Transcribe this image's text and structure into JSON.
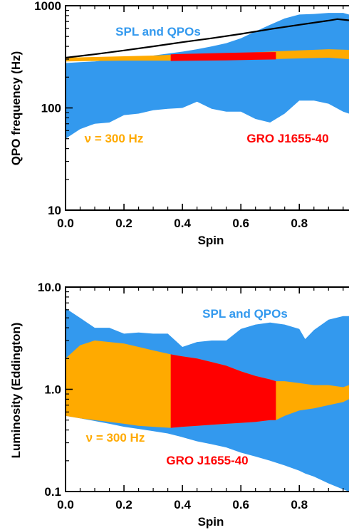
{
  "chart_data": [
    {
      "type": "area",
      "xlabel": "Spin",
      "ylabel": "QPO frequency (Hz)",
      "xlim": [
        0.0,
        0.97
      ],
      "ylim": [
        10,
        1000
      ],
      "yscale": "log",
      "x_ticks": [
        "0.0",
        "0.2",
        "0.4",
        "0.6",
        "0.8"
      ],
      "y_ticks": [
        "10",
        "100",
        "1000"
      ],
      "annotations": {
        "spl_label": "SPL and QPOs",
        "nu_label": "ν = 300 Hz",
        "source_label": "GRO J1655-40"
      },
      "colors": {
        "spl": "#3399ee",
        "nu": "#ffaa00",
        "source": "#ff0000",
        "line": "#000000"
      },
      "series": [
        {
          "name": "SPL and QPOs",
          "x": [
            0.0,
            0.05,
            0.1,
            0.15,
            0.2,
            0.25,
            0.3,
            0.35,
            0.4,
            0.45,
            0.5,
            0.55,
            0.6,
            0.65,
            0.7,
            0.75,
            0.8,
            0.85,
            0.9,
            0.95,
            0.97
          ],
          "upper": [
            275,
            280,
            285,
            295,
            305,
            315,
            325,
            340,
            355,
            375,
            400,
            430,
            480,
            560,
            650,
            750,
            820,
            830,
            850,
            850,
            820
          ],
          "lower": [
            50,
            62,
            70,
            72,
            85,
            88,
            95,
            98,
            100,
            115,
            98,
            92,
            92,
            78,
            72,
            88,
            118,
            118,
            110,
            92,
            88
          ]
        },
        {
          "name": "ν = 300 Hz",
          "x": [
            0.0,
            0.1,
            0.2,
            0.3,
            0.35,
            0.4,
            0.5,
            0.6,
            0.7,
            0.8,
            0.9,
            0.97
          ],
          "upper": [
            310,
            315,
            320,
            325,
            330,
            335,
            340,
            345,
            355,
            365,
            375,
            370
          ],
          "lower": [
            285,
            288,
            290,
            290,
            290,
            290,
            292,
            295,
            300,
            305,
            310,
            300
          ]
        },
        {
          "name": "GRO J1655-40",
          "x": [
            0.36,
            0.45,
            0.55,
            0.65,
            0.72
          ],
          "upper": [
            335,
            340,
            345,
            350,
            352
          ],
          "lower": [
            288,
            290,
            292,
            296,
            298
          ]
        },
        {
          "name": "upper bound line",
          "x": [
            0.0,
            0.1,
            0.2,
            0.3,
            0.4,
            0.5,
            0.6,
            0.7,
            0.8,
            0.9,
            0.93,
            0.97
          ],
          "values": [
            310,
            335,
            365,
            400,
            440,
            480,
            530,
            590,
            650,
            715,
            740,
            720
          ]
        }
      ]
    },
    {
      "type": "area",
      "xlabel": "Spin",
      "ylabel": "Luminosity (Eddington)",
      "xlim": [
        0.0,
        0.97
      ],
      "ylim": [
        0.1,
        10.0
      ],
      "yscale": "log",
      "x_ticks": [
        "0.0",
        "0.2",
        "0.4",
        "0.6",
        "0.8"
      ],
      "y_ticks": [
        "0.1",
        "1.0",
        "10.0"
      ],
      "annotations": {
        "spl_label": "SPL and QPOs",
        "nu_label": "ν = 300 Hz",
        "source_label": "GRO J1655-40"
      },
      "colors": {
        "spl": "#3399ee",
        "nu": "#ffaa00",
        "source": "#ff0000"
      },
      "series": [
        {
          "name": "SPL and QPOs",
          "x": [
            0.0,
            0.05,
            0.1,
            0.15,
            0.2,
            0.25,
            0.3,
            0.35,
            0.4,
            0.45,
            0.5,
            0.55,
            0.6,
            0.65,
            0.7,
            0.75,
            0.8,
            0.82,
            0.85,
            0.9,
            0.95,
            0.97
          ],
          "upper": [
            6.2,
            5.0,
            4.0,
            4.0,
            3.5,
            3.6,
            3.5,
            3.5,
            2.6,
            2.9,
            3.0,
            3.0,
            3.9,
            4.3,
            4.5,
            4.3,
            3.9,
            3.1,
            3.8,
            4.8,
            5.2,
            5.2
          ],
          "lower": [
            0.55,
            0.52,
            0.49,
            0.46,
            0.43,
            0.41,
            0.39,
            0.37,
            0.34,
            0.31,
            0.29,
            0.27,
            0.24,
            0.22,
            0.2,
            0.18,
            0.16,
            0.15,
            0.14,
            0.12,
            0.105,
            0.1
          ]
        },
        {
          "name": "ν = 300 Hz",
          "x": [
            0.0,
            0.05,
            0.1,
            0.15,
            0.2,
            0.25,
            0.3,
            0.36,
            0.4,
            0.45,
            0.5,
            0.55,
            0.6,
            0.65,
            0.7,
            0.72,
            0.75,
            0.8,
            0.85,
            0.9,
            0.95,
            0.97
          ],
          "upper": [
            2.0,
            2.7,
            3.0,
            2.9,
            2.8,
            2.6,
            2.4,
            2.2,
            2.1,
            2.0,
            1.85,
            1.7,
            1.5,
            1.35,
            1.25,
            1.2,
            1.2,
            1.15,
            1.1,
            1.1,
            1.05,
            1.1
          ],
          "lower": [
            0.55,
            0.52,
            0.5,
            0.48,
            0.46,
            0.44,
            0.43,
            0.42,
            0.43,
            0.44,
            0.45,
            0.46,
            0.47,
            0.48,
            0.5,
            0.5,
            0.55,
            0.62,
            0.65,
            0.7,
            0.75,
            0.8
          ]
        },
        {
          "name": "GRO J1655-40",
          "x": [
            0.36,
            0.4,
            0.45,
            0.5,
            0.55,
            0.6,
            0.65,
            0.7,
            0.72
          ],
          "upper": [
            2.2,
            2.1,
            2.0,
            1.85,
            1.7,
            1.5,
            1.35,
            1.25,
            1.2
          ],
          "lower": [
            0.42,
            0.43,
            0.44,
            0.45,
            0.46,
            0.47,
            0.48,
            0.5,
            0.5
          ]
        }
      ]
    }
  ]
}
